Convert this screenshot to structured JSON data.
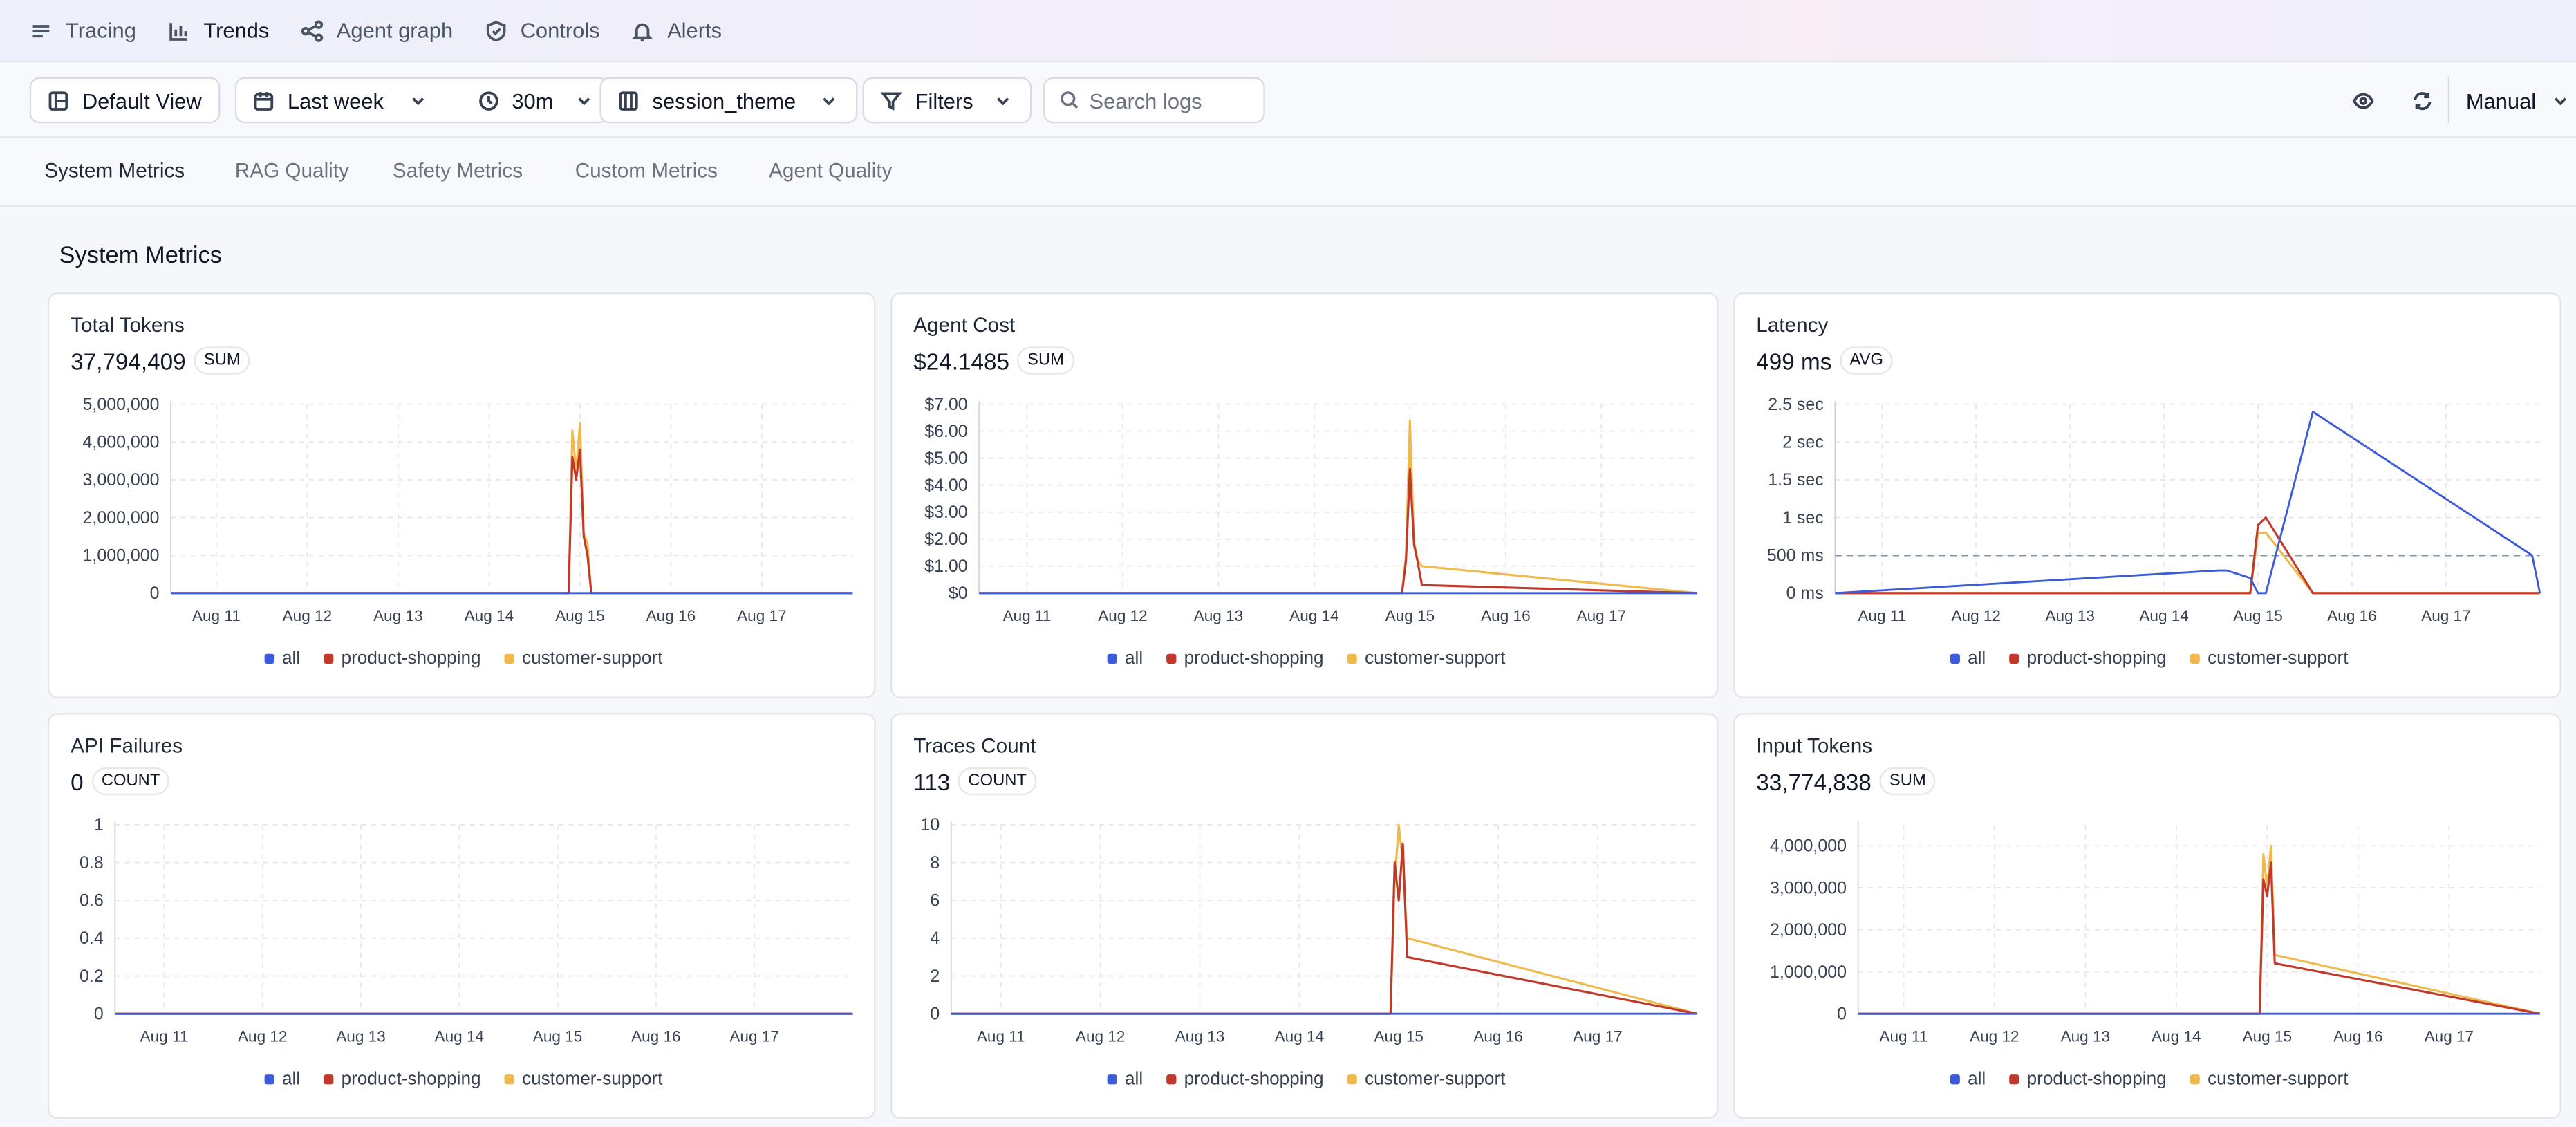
{
  "nav": {
    "items": [
      {
        "label": "Tracing",
        "icon": "list-icon"
      },
      {
        "label": "Trends",
        "icon": "bar-chart-icon"
      },
      {
        "label": "Agent graph",
        "icon": "graph-icon"
      },
      {
        "label": "Controls",
        "icon": "shield-icon"
      },
      {
        "label": "Alerts",
        "icon": "bell-icon"
      }
    ],
    "active": "Trends"
  },
  "toolbar": {
    "view_label": "Default View",
    "range_label": "Last week",
    "interval_label": "30m",
    "group_label": "session_theme",
    "filters_label": "Filters",
    "search_placeholder": "Search logs",
    "refresh_mode": "Manual"
  },
  "tabs": [
    "System Metrics",
    "RAG Quality",
    "Safety Metrics",
    "Custom Metrics",
    "Agent Quality"
  ],
  "section_title": "System Metrics",
  "legend": [
    {
      "name": "all",
      "color": "#3b5bdb"
    },
    {
      "name": "product-shopping",
      "color": "#c0392b"
    },
    {
      "name": "customer-support",
      "color": "#f0b94b"
    }
  ],
  "x_ticks": [
    "Aug 11",
    "Aug 12",
    "Aug 13",
    "Aug 14",
    "Aug 15",
    "Aug 16",
    "Aug 17"
  ],
  "cards": [
    {
      "title": "Total Tokens",
      "value": "37,794,409",
      "agg": "SUM"
    },
    {
      "title": "Agent Cost",
      "value": "$24.1485",
      "agg": "SUM"
    },
    {
      "title": "Latency",
      "value": "499 ms",
      "agg": "AVG"
    },
    {
      "title": "API Failures",
      "value": "0",
      "agg": "COUNT"
    },
    {
      "title": "Traces Count",
      "value": "113",
      "agg": "COUNT"
    },
    {
      "title": "Input Tokens",
      "value": "33,774,838",
      "agg": "SUM"
    }
  ],
  "chart_data": [
    {
      "type": "line",
      "title": "Total Tokens",
      "x": [
        "Aug 10 12:00",
        "Aug 14 21:00",
        "Aug 14 22:00",
        "Aug 14 23:00",
        "Aug 15 00:00",
        "Aug 15 01:00",
        "Aug 15 02:00",
        "Aug 15 03:00",
        "Aug 15 04:00",
        "Aug 17 23:59"
      ],
      "y_ticks": [
        "0",
        "1,000,000",
        "2,000,000",
        "3,000,000",
        "4,000,000",
        "5,000,000"
      ],
      "ylim": [
        0,
        5000000
      ],
      "series": [
        {
          "name": "all",
          "values": [
            0,
            0,
            0,
            0,
            0,
            0,
            0,
            0,
            0,
            0
          ]
        },
        {
          "name": "product-shopping",
          "values": [
            0,
            0,
            3600000,
            3000000,
            3800000,
            1500000,
            1000000,
            0,
            0,
            0
          ]
        },
        {
          "name": "customer-support",
          "values": [
            0,
            0,
            4300000,
            3200000,
            4500000,
            1600000,
            1300000,
            0,
            0,
            0
          ]
        }
      ]
    },
    {
      "type": "line",
      "title": "Agent Cost",
      "x": [
        "Aug 10 12:00",
        "Aug 14 22:00",
        "Aug 14 23:00",
        "Aug 15 00:00",
        "Aug 15 01:00",
        "Aug 15 02:00",
        "Aug 15 03:00",
        "Aug 17 23:59"
      ],
      "y_ticks": [
        "$0",
        "$1.00",
        "$2.00",
        "$3.00",
        "$4.00",
        "$5.00",
        "$6.00",
        "$7.00"
      ],
      "ylim": [
        0,
        7
      ],
      "series": [
        {
          "name": "all",
          "values": [
            0,
            0,
            0,
            0,
            0,
            0,
            0,
            0
          ]
        },
        {
          "name": "product-shopping",
          "values": [
            0,
            0,
            1.2,
            4.6,
            1.8,
            1.1,
            0.3,
            0
          ]
        },
        {
          "name": "customer-support",
          "values": [
            0,
            0,
            1.4,
            6.4,
            1.9,
            1.2,
            1.0,
            0
          ]
        }
      ]
    },
    {
      "type": "line",
      "title": "Latency",
      "x": [
        "Aug 10 12:00",
        "Aug 14 14:00",
        "Aug 14 16:00",
        "Aug 14 22:00",
        "Aug 15 00:00",
        "Aug 15 02:00",
        "Aug 15 14:00",
        "Aug 17 22:00",
        "Aug 17 23:59"
      ],
      "y_ticks": [
        "0 ms",
        "500 ms",
        "1 sec",
        "1.5 sec",
        "2 sec",
        "2.5 sec"
      ],
      "ylim": [
        0,
        2.5
      ],
      "reference_line": 0.499,
      "series": [
        {
          "name": "all",
          "values": [
            0,
            0.3,
            0.3,
            0.2,
            0,
            0,
            2.4,
            0.5,
            0
          ]
        },
        {
          "name": "product-shopping",
          "values": [
            0,
            0,
            0,
            0,
            0.9,
            1.0,
            0,
            0,
            0
          ]
        },
        {
          "name": "customer-support",
          "values": [
            0,
            0,
            0,
            0,
            0.8,
            0.8,
            0,
            0,
            0
          ]
        }
      ]
    },
    {
      "type": "line",
      "title": "API Failures",
      "x": [
        "Aug 10 12:00",
        "Aug 17 23:59"
      ],
      "y_ticks": [
        "0",
        "0.2",
        "0.4",
        "0.6",
        "0.8",
        "1"
      ],
      "ylim": [
        0,
        1
      ],
      "series": [
        {
          "name": "all",
          "values": [
            0,
            0
          ]
        },
        {
          "name": "product-shopping",
          "values": [
            0,
            0
          ]
        },
        {
          "name": "customer-support",
          "values": [
            0,
            0
          ]
        }
      ]
    },
    {
      "type": "line",
      "title": "Traces Count",
      "x": [
        "Aug 10 12:00",
        "Aug 14 22:00",
        "Aug 14 23:00",
        "Aug 15 00:00",
        "Aug 15 01:00",
        "Aug 15 02:00",
        "Aug 17 23:59"
      ],
      "y_ticks": [
        "0",
        "2",
        "4",
        "6",
        "8",
        "10"
      ],
      "ylim": [
        0,
        10
      ],
      "series": [
        {
          "name": "all",
          "values": [
            0,
            0,
            0,
            0,
            0,
            0,
            0
          ]
        },
        {
          "name": "product-shopping",
          "values": [
            0,
            0,
            8,
            6,
            9,
            3,
            0
          ]
        },
        {
          "name": "customer-support",
          "values": [
            0,
            0,
            7,
            10,
            8,
            4,
            0
          ]
        }
      ]
    },
    {
      "type": "line",
      "title": "Input Tokens",
      "x": [
        "Aug 10 12:00",
        "Aug 14 22:00",
        "Aug 14 23:00",
        "Aug 15 00:00",
        "Aug 15 01:00",
        "Aug 15 02:00",
        "Aug 17 23:59"
      ],
      "y_ticks": [
        "0",
        "1,000,000",
        "2,000,000",
        "3,000,000",
        "4,000,000"
      ],
      "ylim": [
        0,
        4500000
      ],
      "series": [
        {
          "name": "all",
          "values": [
            0,
            0,
            0,
            0,
            0,
            0,
            0
          ]
        },
        {
          "name": "product-shopping",
          "values": [
            0,
            0,
            3200000,
            2800000,
            3600000,
            1200000,
            0
          ]
        },
        {
          "name": "customer-support",
          "values": [
            0,
            0,
            3800000,
            3000000,
            4000000,
            1400000,
            0
          ]
        }
      ]
    }
  ]
}
